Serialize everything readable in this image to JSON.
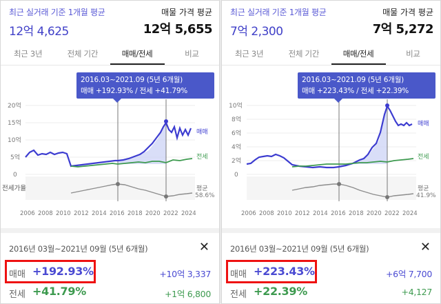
{
  "colors": {
    "sale": "#4040c8",
    "jeonse": "#3d9a4f",
    "ratio": "#999999",
    "highlight": "#e11111",
    "tooltip": "#4a58c9"
  },
  "panels": [
    {
      "avg_label": "최근 실거래 기준 1개월 평균",
      "avg_value": "12억 4,625",
      "listing_label": "매물 가격 평균",
      "listing_value": "12억 5,655",
      "tabs": [
        "최근 3년",
        "전체 기간",
        "매매/전세",
        "비교"
      ],
      "active_tab": 2,
      "tooltip_period": "2016.03~2021.09 (5년 6개월)",
      "tooltip_values": "매매 +192.93%  /  전세 +41.79%",
      "y_ticks": [
        "20억",
        "15억",
        "10억",
        "5억",
        "0"
      ],
      "x_ticks": [
        "2006",
        "2008",
        "2010",
        "2012",
        "2014",
        "2016",
        "2018",
        "2020",
        "2022",
        "2024"
      ],
      "series_labels": {
        "sale": "매매",
        "jeonse": "전세",
        "ratio_left": "전세가율",
        "ratio_right_1": "평균",
        "ratio_right_2": "58.6%"
      },
      "period_text": "2016년 03월~2021년 09월 (5년 6개월)",
      "close_icon": "✕",
      "sale_label": "매매",
      "sale_pct": "+192.93%",
      "sale_amount": "+10억 3,337",
      "jeonse_label": "전세",
      "jeonse_pct": "+41.79%",
      "jeonse_amount": "+1억 6,800"
    },
    {
      "avg_label": "최근 실거래 기준 1개월 평균",
      "avg_value": "7억 2,300",
      "listing_label": "매물 가격 평균",
      "listing_value": "7억 5,272",
      "tabs": [
        "최근 3년",
        "전체 기간",
        "매매/전세",
        "비교"
      ],
      "active_tab": 2,
      "tooltip_period": "2016.03~2021.09 (5년 6개월)",
      "tooltip_values": "매매 +223.43%  /  전세 +22.39%",
      "y_ticks": [
        "10억",
        "8억",
        "6억",
        "4억",
        "2억",
        "0"
      ],
      "x_ticks": [
        "2006",
        "2008",
        "2010",
        "2012",
        "2014",
        "2016",
        "2018",
        "2020",
        "2022",
        "2024"
      ],
      "series_labels": {
        "sale": "매매",
        "jeonse": "전세",
        "ratio_left": "",
        "ratio_right_1": "평균",
        "ratio_right_2": "41.9%"
      },
      "period_text": "2016년 03월~2021년 09월 (5년 6개월)",
      "close_icon": "✕",
      "sale_label": "매매",
      "sale_pct": "+223.43%",
      "sale_amount": "+6억 7,700",
      "jeonse_label": "전세",
      "jeonse_pct": "+22.39%",
      "jeonse_amount": "+4,127"
    }
  ]
}
